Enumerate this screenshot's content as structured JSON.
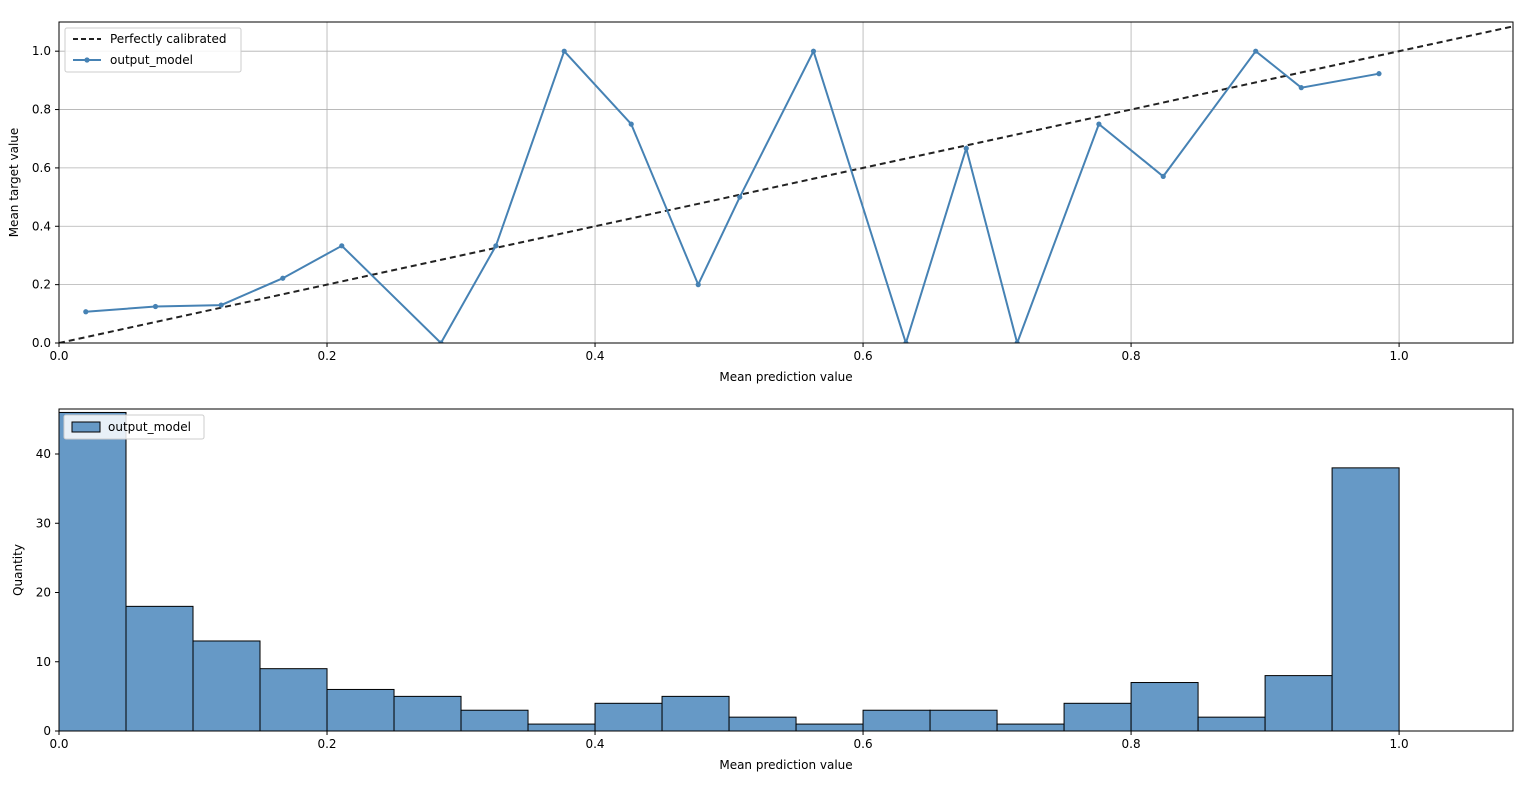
{
  "chart_data": [
    {
      "type": "line",
      "xlabel": "Mean prediction value",
      "ylabel": "Mean target value",
      "xlim": [
        0.0,
        1.085
      ],
      "ylim": [
        0.0,
        1.1
      ],
      "xticks": [
        "0.0",
        "0.2",
        "0.4",
        "0.6",
        "0.8",
        "1.0"
      ],
      "yticks": [
        "0.0",
        "0.2",
        "0.4",
        "0.6",
        "0.8",
        "1.0"
      ],
      "grid": true,
      "legend_position": "top-left",
      "series": [
        {
          "name": "Perfectly calibrated",
          "style": "dashed",
          "color": "#222222",
          "x": [
            0.0,
            1.085
          ],
          "y": [
            0.0,
            1.085
          ]
        },
        {
          "name": "output_model",
          "style": "solid-with-markers",
          "color": "#4682b4",
          "x": [
            0.02,
            0.072,
            0.121,
            0.167,
            0.211,
            0.285,
            0.326,
            0.377,
            0.427,
            0.477,
            0.508,
            0.563,
            0.632,
            0.677,
            0.715,
            0.776,
            0.824,
            0.893,
            0.927,
            0.985
          ],
          "y": [
            0.107,
            0.125,
            0.13,
            0.222,
            0.333,
            0.0,
            0.333,
            1.0,
            0.75,
            0.2,
            0.5,
            1.0,
            0.0,
            0.667,
            0.0,
            0.75,
            0.571,
            1.0,
            0.875,
            0.923
          ]
        }
      ]
    },
    {
      "type": "bar",
      "xlabel": "Mean prediction value",
      "ylabel": "Quantity",
      "xlim": [
        0.0,
        1.085
      ],
      "ylim": [
        0,
        46.5
      ],
      "xticks": [
        "0.0",
        "0.2",
        "0.4",
        "0.6",
        "0.8",
        "1.0"
      ],
      "yticks": [
        "0",
        "10",
        "20",
        "30",
        "40"
      ],
      "grid": false,
      "legend_position": "top-left",
      "bin_width": 0.05,
      "bin_starts": [
        0.0,
        0.05,
        0.1,
        0.15,
        0.2,
        0.25,
        0.3,
        0.35,
        0.4,
        0.45,
        0.5,
        0.55,
        0.6,
        0.65,
        0.7,
        0.75,
        0.8,
        0.85,
        0.9,
        0.95
      ],
      "series": [
        {
          "name": "output_model",
          "color": "#6699c6",
          "values": [
            46,
            18,
            13,
            9,
            6,
            5,
            3,
            1,
            4,
            5,
            2,
            1,
            3,
            3,
            1,
            4,
            7,
            2,
            8,
            38
          ]
        }
      ]
    }
  ]
}
